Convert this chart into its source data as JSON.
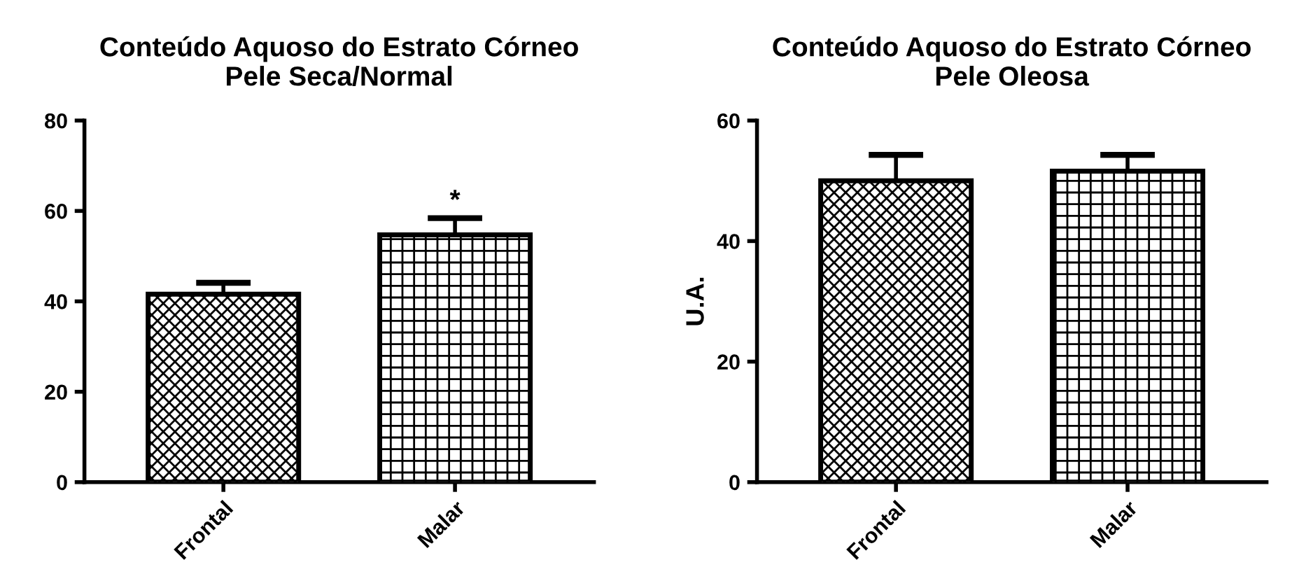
{
  "chart_data": [
    {
      "type": "bar",
      "title": "Conteúdo Aquoso do Estrato Córneo\nPele Seca/Normal",
      "categories": [
        "Frontal",
        "Malar"
      ],
      "values": [
        41.6,
        54.7
      ],
      "errors": [
        2.5,
        3.7
      ],
      "color": "#000000",
      "ylim": [
        0,
        80
      ],
      "yticks": [
        0,
        20,
        40,
        60,
        80
      ],
      "grid": false,
      "annotations": [
        {
          "text": "*",
          "x": "Malar",
          "y": 58.4
        }
      ]
    },
    {
      "type": "bar",
      "title": "Conteúdo Aquoso do Estrato Córneo\nPele Oleosa",
      "ylabel": "U.A.",
      "categories": [
        "Frontal",
        "Malar"
      ],
      "values": [
        50.0,
        51.6
      ],
      "errors": [
        4.3,
        2.7
      ],
      "color": "#000000",
      "ylim": [
        0,
        60
      ],
      "yticks": [
        0,
        20,
        40,
        60
      ],
      "grid": false
    }
  ]
}
